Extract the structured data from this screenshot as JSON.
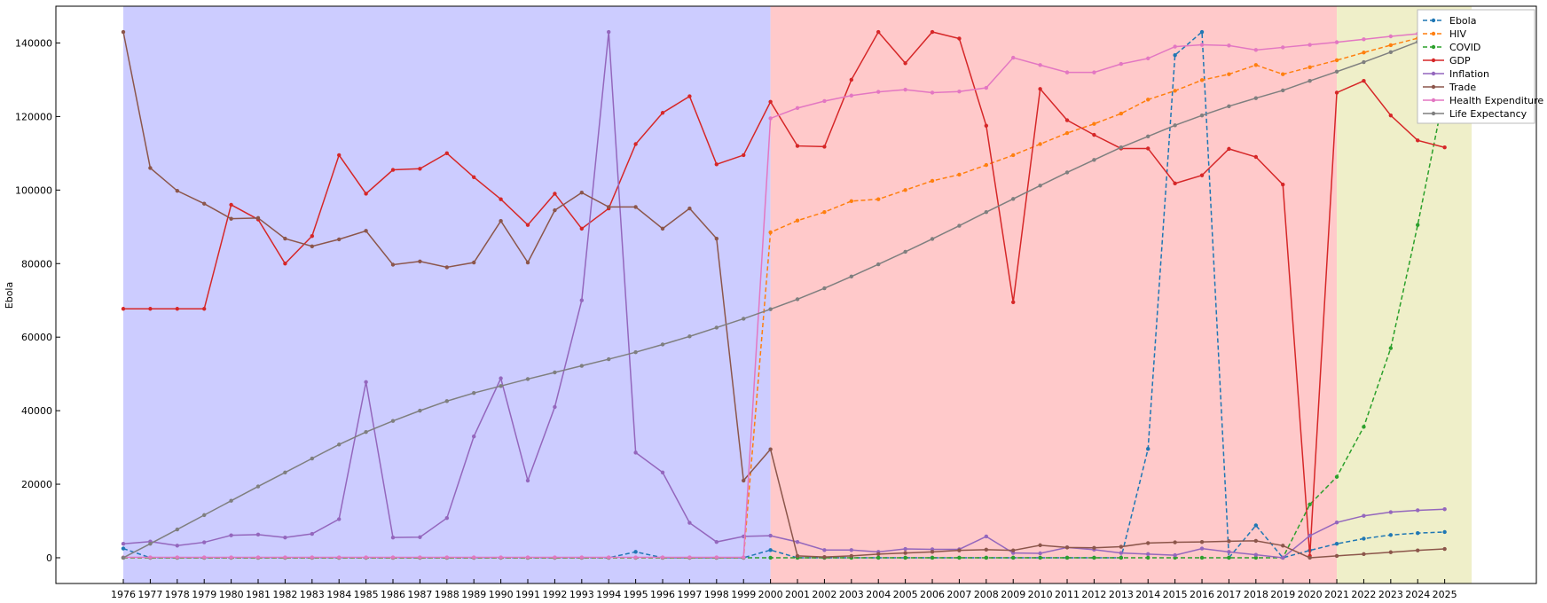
{
  "chart_data": {
    "type": "line",
    "y_label": "Ebola",
    "x": [
      1976,
      1977,
      1978,
      1979,
      1980,
      1981,
      1982,
      1983,
      1984,
      1985,
      1986,
      1987,
      1988,
      1989,
      1990,
      1991,
      1992,
      1993,
      1994,
      1995,
      1996,
      1997,
      1998,
      1999,
      2000,
      2001,
      2002,
      2003,
      2004,
      2005,
      2006,
      2007,
      2008,
      2009,
      2010,
      2011,
      2012,
      2013,
      2014,
      2015,
      2016,
      2017,
      2018,
      2019,
      2020,
      2021,
      2022,
      2023,
      2024,
      2025
    ],
    "xticks": [
      1976,
      1977,
      1978,
      1979,
      1980,
      1981,
      1982,
      1983,
      1984,
      1985,
      1986,
      1987,
      1988,
      1989,
      1990,
      1991,
      1992,
      1993,
      1994,
      1995,
      1996,
      1997,
      1998,
      1999,
      2000,
      2001,
      2002,
      2003,
      2004,
      2005,
      2006,
      2007,
      2008,
      2009,
      2010,
      2011,
      2012,
      2013,
      2014,
      2015,
      2016,
      2017,
      2018,
      2019,
      2020,
      2021,
      2022,
      2023,
      2024,
      2025
    ],
    "xlim": [
      1973.5,
      2028.4
    ],
    "ylim": [
      -7000,
      150000
    ],
    "yticks": [
      0,
      20000,
      40000,
      60000,
      80000,
      100000,
      120000,
      140000
    ],
    "legend": "upper right",
    "shaded_regions": [
      {
        "start": 1976,
        "end": 2000,
        "color": "#ccccff"
      },
      {
        "start": 2000,
        "end": 2021,
        "color": "#ffc9ca"
      },
      {
        "start": 2021,
        "end": 2026,
        "color": "#efefc9"
      }
    ],
    "series": [
      {
        "name": "Ebola",
        "color": "#1f77b4",
        "dashed": true,
        "values": [
          2500,
          0,
          0,
          0,
          0,
          0,
          0,
          0,
          0,
          0,
          0,
          0,
          0,
          0,
          0,
          0,
          0,
          0,
          0,
          1600,
          0,
          0,
          0,
          0,
          2100,
          0,
          0,
          0,
          0,
          0,
          0,
          0,
          0,
          0,
          0,
          0,
          0,
          0,
          29600,
          136700,
          143000,
          0,
          8800,
          0,
          2000,
          3800,
          5200,
          6200,
          6700,
          7000
        ]
      },
      {
        "name": "HIV",
        "color": "#ff7f0e",
        "dashed": true,
        "values": [
          0,
          0,
          0,
          0,
          0,
          0,
          0,
          0,
          0,
          0,
          0,
          0,
          0,
          0,
          0,
          0,
          0,
          0,
          0,
          0,
          0,
          0,
          0,
          0,
          88500,
          91700,
          94000,
          97000,
          97500,
          100000,
          102500,
          104200,
          106800,
          109500,
          112500,
          115500,
          118000,
          120800,
          124600,
          127000,
          129900,
          131500,
          134000,
          131500,
          133400,
          135300,
          137400,
          139400,
          141300,
          143000
        ]
      },
      {
        "name": "COVID",
        "color": "#2ca02c",
        "dashed": true,
        "values": [
          0,
          0,
          0,
          0,
          0,
          0,
          0,
          0,
          0,
          0,
          0,
          0,
          0,
          0,
          0,
          0,
          0,
          0,
          0,
          0,
          0,
          0,
          0,
          0,
          0,
          0,
          0,
          0,
          0,
          0,
          0,
          0,
          0,
          0,
          0,
          0,
          0,
          0,
          0,
          0,
          0,
          0,
          0,
          0,
          14500,
          22000,
          35600,
          57000,
          90500,
          127000
        ]
      },
      {
        "name": "GDP",
        "color": "#d62728",
        "dashed": false,
        "values": [
          67700,
          67700,
          67700,
          67700,
          96000,
          92000,
          80000,
          87500,
          109500,
          99000,
          105500,
          105800,
          110000,
          103500,
          97500,
          90500,
          99000,
          89500,
          95000,
          112500,
          121000,
          125500,
          107000,
          109500,
          124000,
          112000,
          111800,
          130000,
          143000,
          134500,
          143000,
          141200,
          117500,
          69500,
          127500,
          119000,
          115000,
          111300,
          111300,
          101800,
          104000,
          111200,
          109000,
          101500,
          500,
          126500,
          129700,
          120300,
          113500,
          111600
        ]
      },
      {
        "name": "Inflation",
        "color": "#9467bd",
        "dashed": false,
        "values": [
          3800,
          4400,
          3300,
          4200,
          6100,
          6300,
          5500,
          6500,
          10500,
          47800,
          5500,
          5600,
          10800,
          33000,
          48800,
          21000,
          41000,
          70000,
          143000,
          28600,
          23200,
          9500,
          4300,
          5800,
          6000,
          4300,
          2100,
          2100,
          1600,
          2400,
          2300,
          2300,
          5800,
          1300,
          1200,
          2800,
          2200,
          1300,
          1000,
          700,
          2500,
          1600,
          800,
          0,
          6000,
          9600,
          11400,
          12400,
          12900,
          13200
        ]
      },
      {
        "name": "Trade",
        "color": "#8c564b",
        "dashed": false,
        "values": [
          143000,
          106000,
          99800,
          96300,
          92200,
          92400,
          86800,
          84700,
          86600,
          88900,
          79700,
          80600,
          79000,
          80300,
          91600,
          80300,
          94500,
          99300,
          95400,
          95400,
          89500,
          95000,
          86800,
          21000,
          29500,
          500,
          200,
          500,
          1000,
          1300,
          1600,
          2000,
          2200,
          2000,
          3400,
          2800,
          2700,
          3000,
          4000,
          4200,
          4300,
          4500,
          4600,
          3300,
          0,
          500,
          1000,
          1500,
          2000,
          2400
        ]
      },
      {
        "name": "Health Expenditure",
        "color": "#e377c2",
        "dashed": false,
        "values": [
          100,
          100,
          100,
          100,
          100,
          100,
          100,
          100,
          100,
          100,
          100,
          100,
          100,
          100,
          100,
          100,
          100,
          100,
          100,
          100,
          100,
          100,
          100,
          100,
          119500,
          122300,
          124200,
          125700,
          126700,
          127300,
          126500,
          126800,
          127800,
          136000,
          134000,
          132000,
          132000,
          134300,
          135800,
          139000,
          139500,
          139300,
          138100,
          138800,
          139500,
          140200,
          141000,
          141800,
          142500,
          143000
        ]
      },
      {
        "name": "Life Expectancy",
        "color": "#7f7f7f",
        "dashed": false,
        "values": [
          0,
          3800,
          7700,
          11600,
          15500,
          19400,
          23200,
          27000,
          30800,
          34200,
          37200,
          40000,
          42600,
          44800,
          46700,
          48600,
          50400,
          52200,
          54000,
          55900,
          58000,
          60200,
          62600,
          65000,
          67600,
          70300,
          73300,
          76500,
          79800,
          83200,
          86700,
          90300,
          94000,
          97600,
          101200,
          104800,
          108200,
          111600,
          114600,
          117600,
          120300,
          122800,
          125000,
          127100,
          129700,
          132200,
          134800,
          137500,
          140300,
          143000
        ]
      }
    ]
  }
}
